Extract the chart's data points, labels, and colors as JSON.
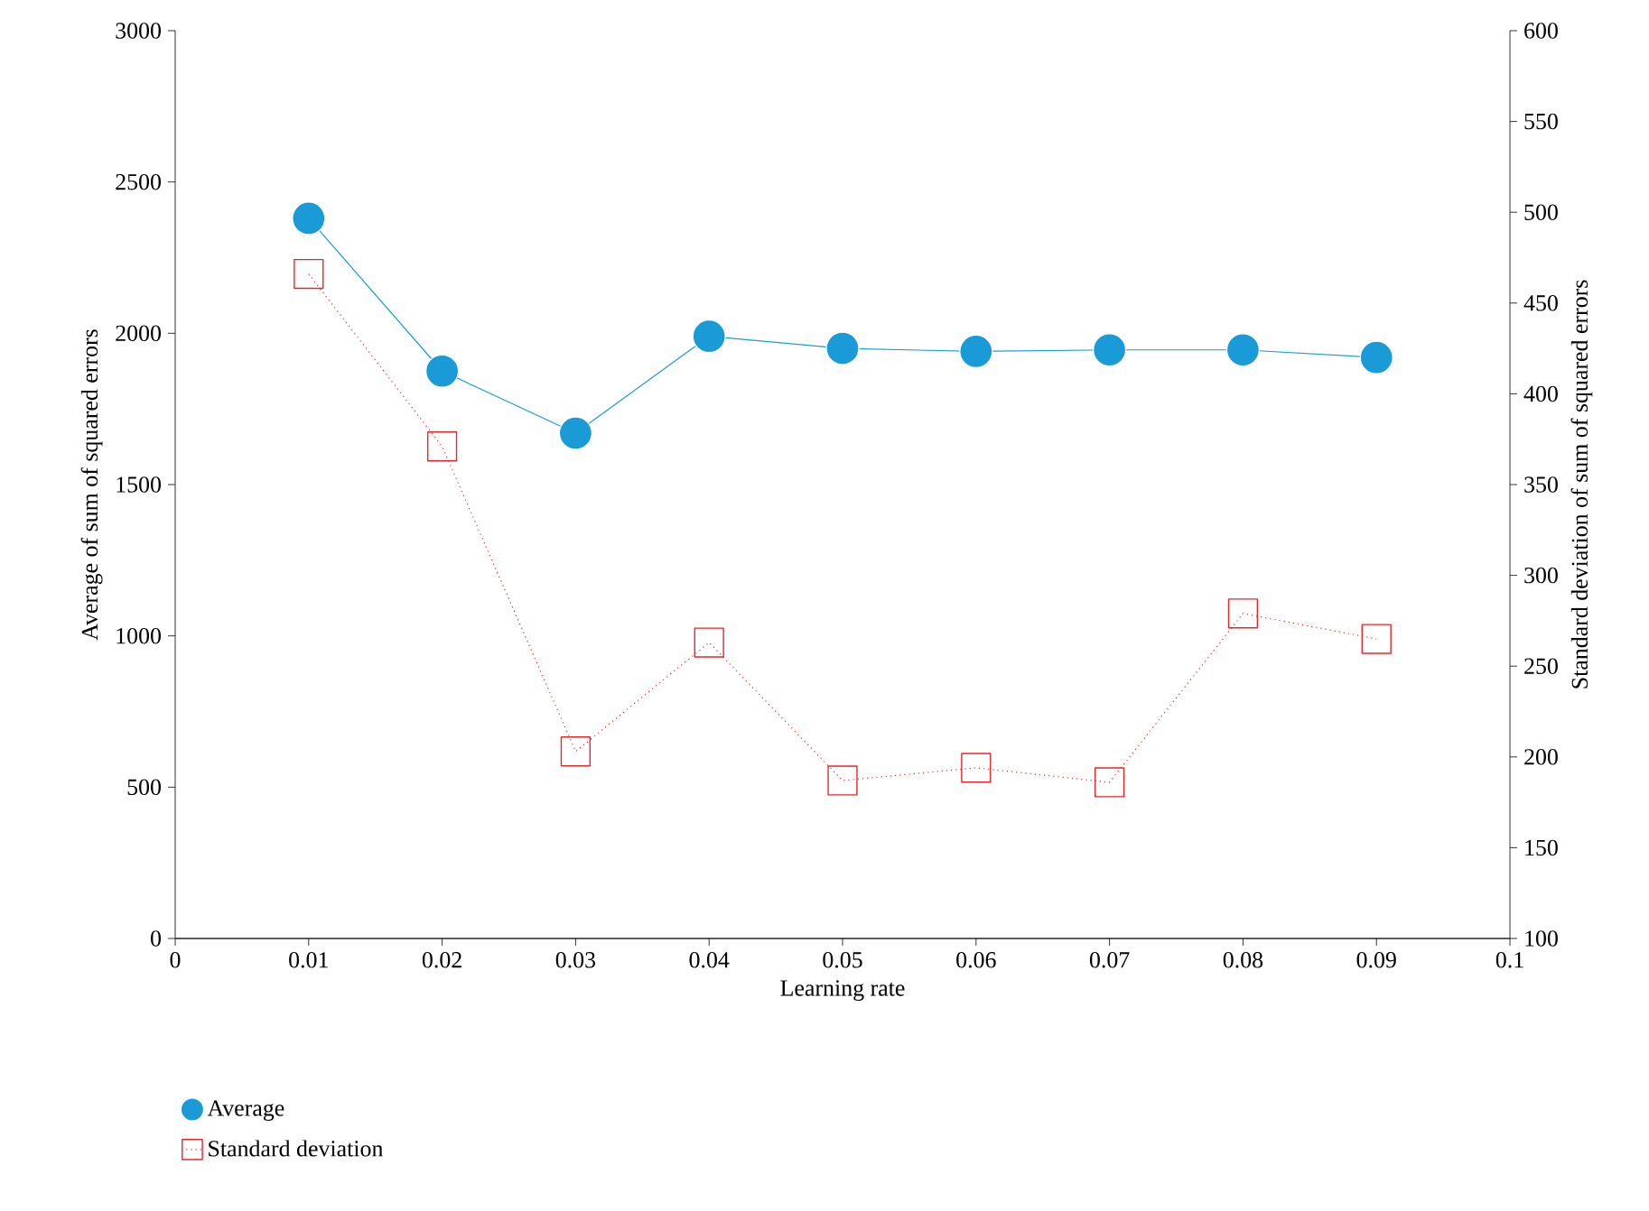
{
  "chart_data": {
    "type": "line",
    "xlabel": "Learning rate",
    "ylabel": "Average of sum of squared errors",
    "y2label": "Standard deviation of sum of squared errors",
    "x": [
      0.01,
      0.02,
      0.03,
      0.04,
      0.05,
      0.06,
      0.07,
      0.08,
      0.09
    ],
    "xlim": [
      0,
      0.1
    ],
    "xticks": [
      0,
      0.01,
      0.02,
      0.03,
      0.04,
      0.05,
      0.06,
      0.07,
      0.08,
      0.09,
      0.1
    ],
    "ylim": [
      0,
      3000
    ],
    "yticks": [
      0,
      500,
      1000,
      1500,
      2000,
      2500,
      3000
    ],
    "y2lim": [
      100,
      600
    ],
    "y2ticks": [
      100,
      150,
      200,
      250,
      300,
      350,
      400,
      450,
      500,
      550,
      600
    ],
    "legend": "bottom",
    "series": [
      {
        "name": "Average",
        "color": "#1a9bd7",
        "marker": "circle",
        "line_style": "solid",
        "values": [
          2380,
          1875,
          1670,
          1990,
          1950,
          1940,
          1945,
          1945,
          1920
        ]
      },
      {
        "name": "Standard deviation",
        "color": "#e8262a",
        "marker": "square",
        "line_style": "dotted",
        "axis": "y2",
        "values": [
          466,
          371,
          203,
          263,
          187,
          194,
          186,
          279,
          265
        ]
      }
    ]
  }
}
